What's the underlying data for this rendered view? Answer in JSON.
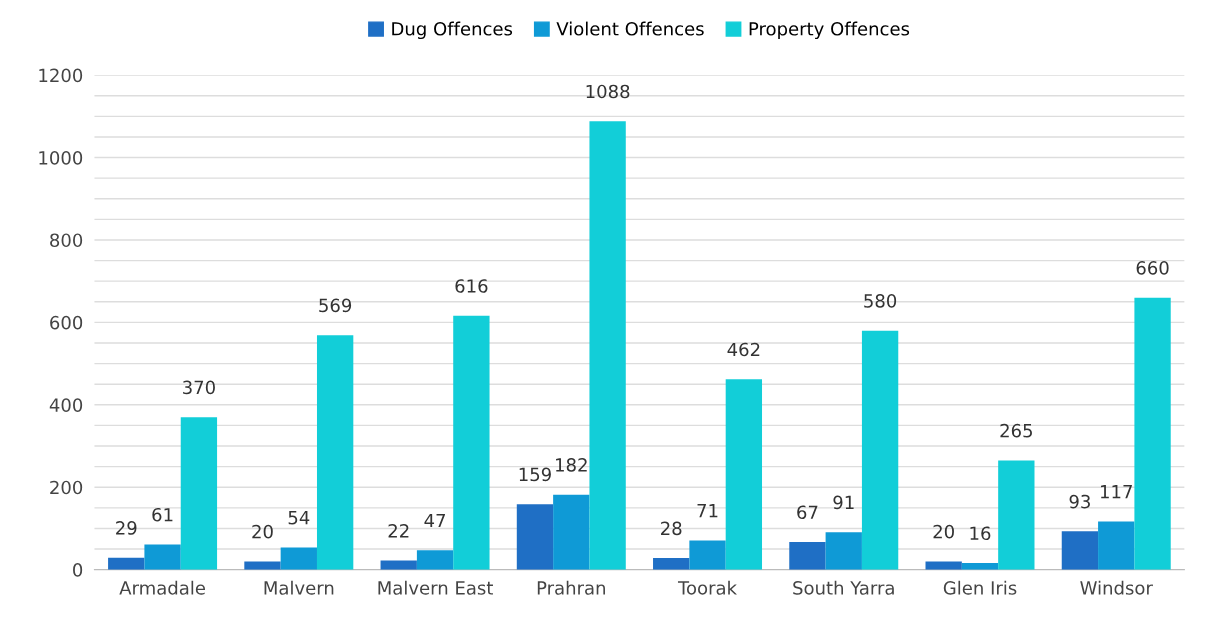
{
  "chart_data": {
    "type": "bar",
    "categories": [
      "Armadale",
      "Malvern",
      "Malvern East",
      "Prahran",
      "Toorak",
      "South Yarra",
      "Glen Iris",
      "Windsor"
    ],
    "series": [
      {
        "name": "Dug Offences",
        "color": "#1f6fc5",
        "values": [
          29,
          20,
          22,
          159,
          28,
          67,
          20,
          93
        ]
      },
      {
        "name": "Violent Offences",
        "color": "#0f9ad6",
        "values": [
          61,
          54,
          47,
          182,
          71,
          91,
          16,
          117
        ]
      },
      {
        "name": "Property Offences",
        "color": "#12ced8",
        "values": [
          370,
          569,
          616,
          1088,
          462,
          580,
          265,
          660
        ]
      }
    ],
    "ylim": [
      0,
      1200
    ],
    "yticks": [
      0,
      {
        "value": 50,
        "label": null
      },
      200,
      {
        "value": 100,
        "label": null
      },
      {
        "value": 150,
        "label": null
      },
      {
        "value": 250,
        "label": null
      },
      {
        "value": 300,
        "label": null
      },
      {
        "value": 350,
        "label": null
      },
      400,
      {
        "value": 450,
        "label": null
      },
      {
        "value": 500,
        "label": null
      },
      {
        "value": 550,
        "label": null
      },
      600,
      {
        "value": 650,
        "label": null
      },
      {
        "value": 700,
        "label": null
      },
      {
        "value": 750,
        "label": null
      },
      800,
      {
        "value": 850,
        "label": null
      },
      {
        "value": 900,
        "label": null
      },
      {
        "value": 950,
        "label": null
      },
      1000,
      {
        "value": 1050,
        "label": null
      },
      {
        "value": 1100,
        "label": null
      },
      {
        "value": 1150,
        "label": null
      },
      1200
    ],
    "grid": "y",
    "legend": "top",
    "data_labels": true
  }
}
